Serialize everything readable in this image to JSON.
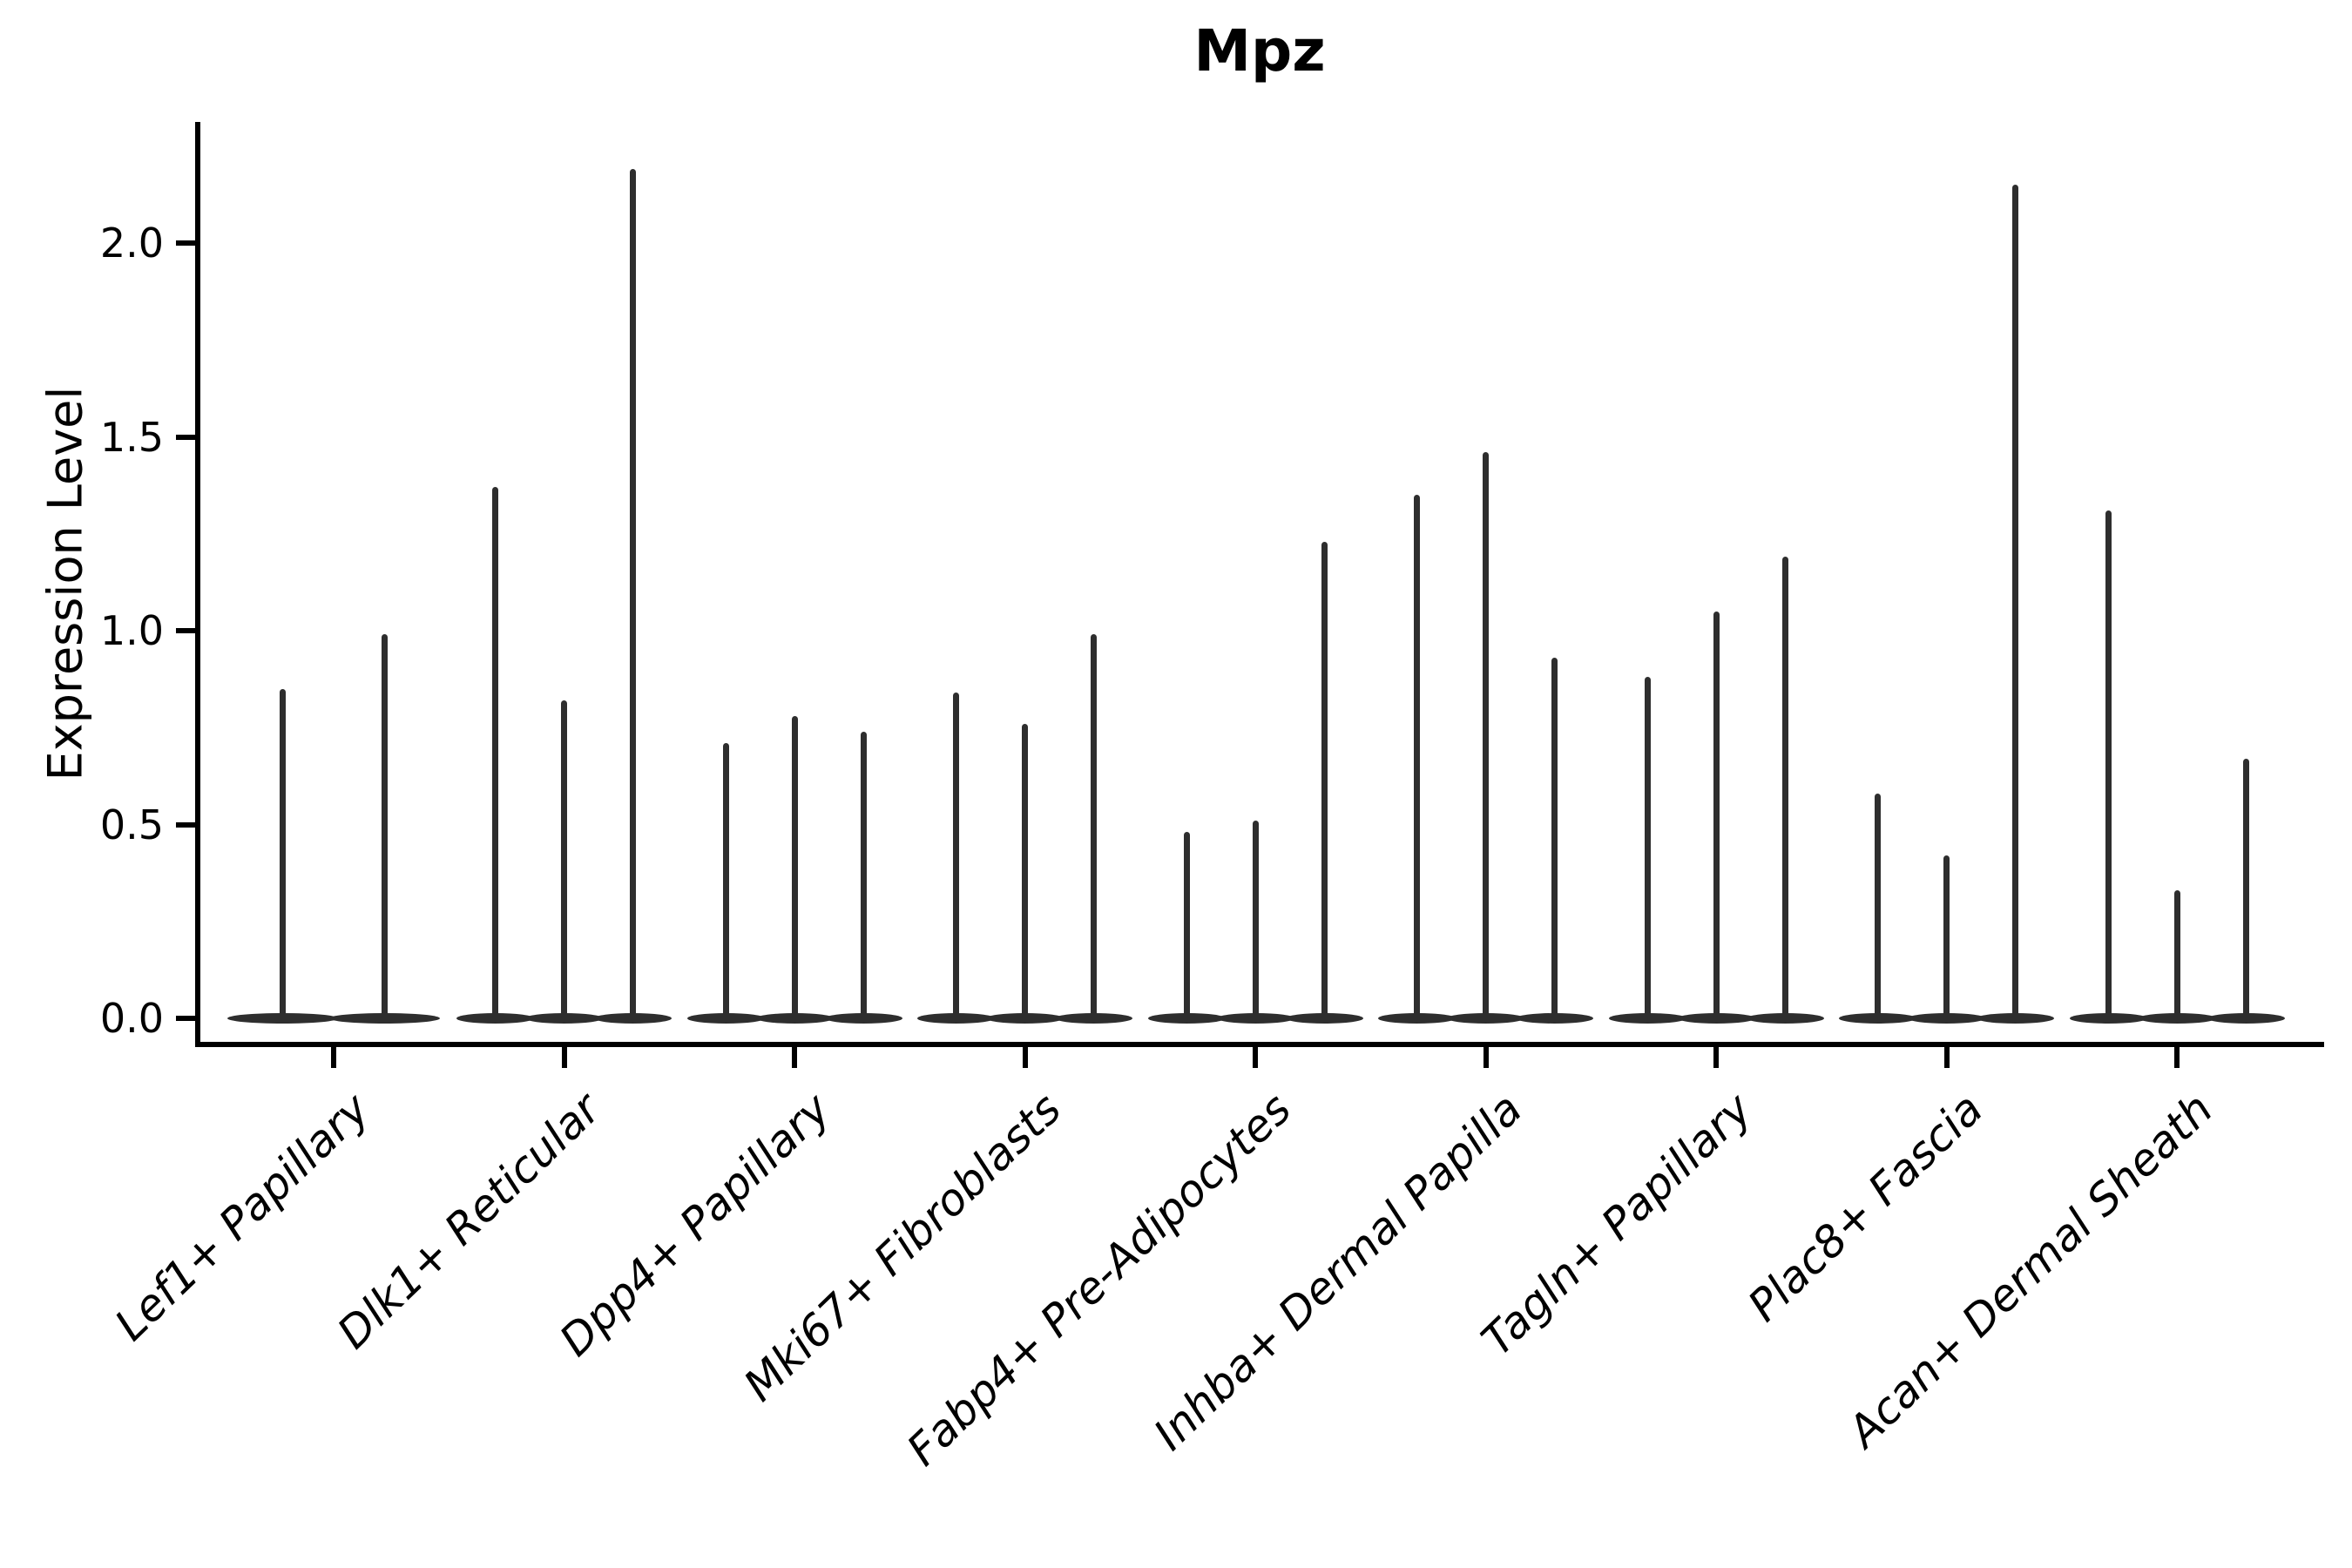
{
  "chart_data": {
    "type": "violin",
    "title": "Mpz",
    "xlabel": "",
    "ylabel": "Expression Level",
    "yticks": [
      0.0,
      0.5,
      1.0,
      1.5,
      2.0
    ],
    "ytick_labels": [
      "0.0",
      "0.5",
      "1.0",
      "1.5",
      "2.0"
    ],
    "ylim": [
      -0.07,
      2.31
    ],
    "grid": false,
    "legend_position": "none",
    "xtick_rotation_deg": 44,
    "categories": [
      "Lef1+ Papillary",
      "Dlk1+ Reticular",
      "Dpp4+ Papillary",
      "Mki67+ Fibroblasts",
      "Fabp4+ Pre-Adipocytes",
      "Inhba+ Dermal Papilla",
      "Tagln+ Papillary",
      "Plac8+ Fascia",
      "Acan+ Dermal Sheath"
    ],
    "groups": [
      {
        "category": "Lef1+ Papillary",
        "violin_max": [
          0.85,
          0.99
        ]
      },
      {
        "category": "Dlk1+ Reticular",
        "violin_max": [
          1.37,
          0.82,
          2.19
        ]
      },
      {
        "category": "Dpp4+ Papillary",
        "violin_max": [
          0.71,
          0.78,
          0.74
        ]
      },
      {
        "category": "Mki67+ Fibroblasts",
        "violin_max": [
          0.84,
          0.76,
          0.99
        ]
      },
      {
        "category": "Fabp4+ Pre-Adipocytes",
        "violin_max": [
          0.48,
          0.51,
          1.23
        ]
      },
      {
        "category": "Inhba+ Dermal Papilla",
        "violin_max": [
          1.35,
          1.46,
          0.93
        ]
      },
      {
        "category": "Tagln+ Papillary",
        "violin_max": [
          0.88,
          1.05,
          1.19
        ]
      },
      {
        "category": "Plac8+ Fascia",
        "violin_max": [
          0.58,
          0.42,
          2.15
        ]
      },
      {
        "category": "Acan+ Dermal Sheath",
        "violin_max": [
          1.31,
          0.33,
          0.67
        ]
      }
    ],
    "violin_baseline_value": 0.0,
    "colors": {
      "background": "#ffffff",
      "text": "#000000",
      "axes": "#000000",
      "violin": "#2e2e2e"
    }
  }
}
